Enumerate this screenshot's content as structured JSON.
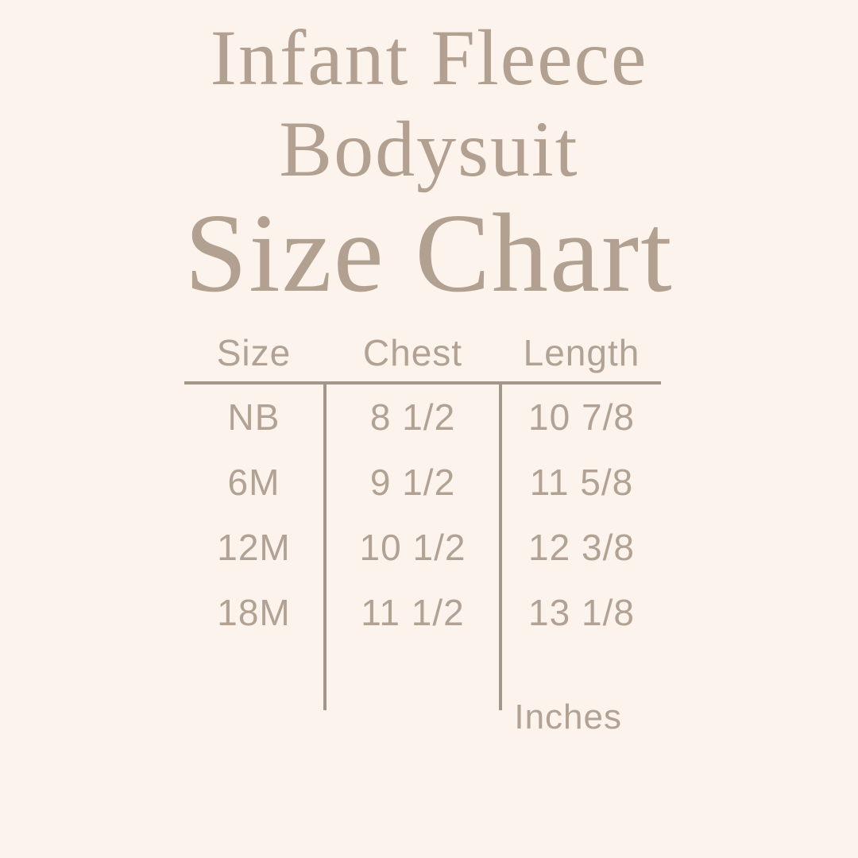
{
  "page": {
    "title_line1": "Infant Fleece",
    "title_line2": "Bodysuit",
    "heading": "Size Chart",
    "unit_note": "Inches"
  },
  "colors": {
    "background": "#fcf3ec",
    "title": "#b2a090",
    "table_text": "#b1a294",
    "line": "#a3968a"
  },
  "table": {
    "columns": [
      "Size",
      "Chest",
      "Length"
    ],
    "rows": [
      [
        "NB",
        "8 1/2",
        "10 7/8"
      ],
      [
        "6M",
        "9 1/2",
        "11 5/8"
      ],
      [
        "12M",
        "10 1/2",
        "12 3/8"
      ],
      [
        "18M",
        "11 1/2",
        "13 1/8"
      ]
    ]
  },
  "chart_data": {
    "type": "table",
    "title": "Infant Fleece Bodysuit Size Chart",
    "columns": [
      "Size",
      "Chest",
      "Length"
    ],
    "rows": [
      [
        "NB",
        "8 1/2",
        "10 7/8"
      ],
      [
        "6M",
        "9 1/2",
        "11 5/8"
      ],
      [
        "12M",
        "10 1/2",
        "12 3/8"
      ],
      [
        "18M",
        "11 1/2",
        "13 1/8"
      ]
    ],
    "units": "Inches",
    "layout": "3-column table, header separated by horizontal rule, column dividers extend below last row"
  }
}
